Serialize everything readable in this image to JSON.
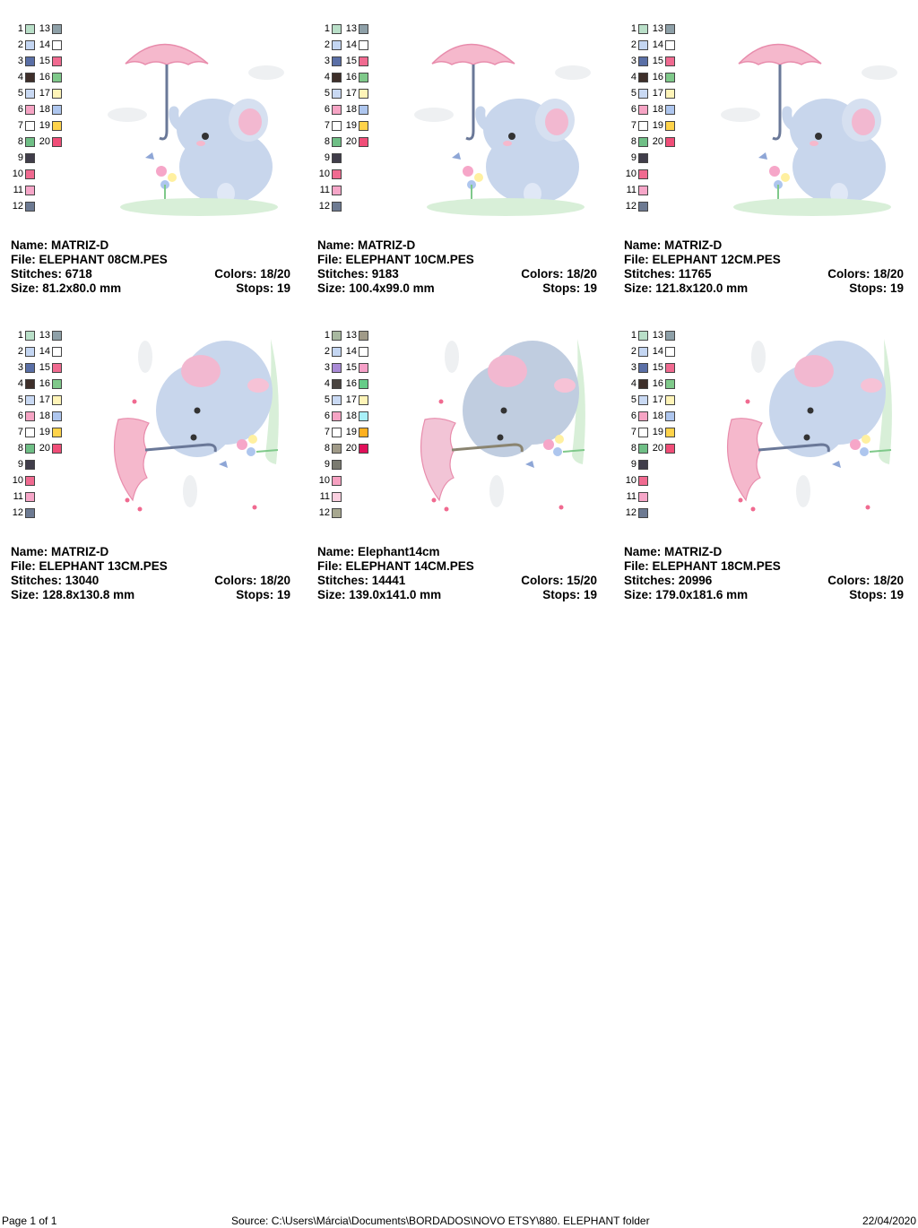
{
  "designs": [
    {
      "name_label": "Name: MATRIZ-D",
      "file_label": "File: ELEPHANT 08CM.PES",
      "stitches_label": "Stitches: 6718",
      "colors_label": "Colors: 18/20",
      "size_label": "Size: 81.2x80.0 mm",
      "stops_label": "Stops: 19",
      "pose": "umbrella-up",
      "swatches": [
        "#b9dfc8",
        "#c4d6f2",
        "#5a6fa6",
        "#3e2f2a",
        "#c9d9f3",
        "#f6a4c4",
        "#ffffff",
        "#6fbf86",
        "#403d4a",
        "#f06a90",
        "#f6a6c8",
        "#6d7a92",
        "#8ea0a8",
        "#ffffff",
        "#f06a90",
        "#7fc98a",
        "#fff4b8",
        "#aec6ee",
        "#ffd34a",
        "#f04e78"
      ]
    },
    {
      "name_label": "Name: MATRIZ-D",
      "file_label": "File: ELEPHANT 10CM.PES",
      "stitches_label": "Stitches: 9183",
      "colors_label": "Colors: 18/20",
      "size_label": "Size: 100.4x99.0 mm",
      "stops_label": "Stops: 19",
      "pose": "umbrella-up",
      "swatches": [
        "#b9dfc8",
        "#c4d6f2",
        "#5a6fa6",
        "#3e2f2a",
        "#c9d9f3",
        "#f6a4c4",
        "#ffffff",
        "#6fbf86",
        "#403d4a",
        "#f06a90",
        "#f6a6c8",
        "#6d7a92",
        "#8ea0a8",
        "#ffffff",
        "#f06a90",
        "#7fc98a",
        "#fff4b8",
        "#aec6ee",
        "#ffd34a",
        "#f04e78"
      ]
    },
    {
      "name_label": "Name: MATRIZ-D",
      "file_label": "File: ELEPHANT 12CM.PES",
      "stitches_label": "Stitches: 11765",
      "colors_label": "Colors: 18/20",
      "size_label": "Size: 121.8x120.0 mm",
      "stops_label": "Stops: 19",
      "pose": "umbrella-up",
      "swatches": [
        "#b9dfc8",
        "#c4d6f2",
        "#5a6fa6",
        "#3e2f2a",
        "#c9d9f3",
        "#f6a4c4",
        "#ffffff",
        "#6fbf86",
        "#403d4a",
        "#f06a90",
        "#f6a6c8",
        "#6d7a92",
        "#8ea0a8",
        "#ffffff",
        "#f06a90",
        "#7fc98a",
        "#fff4b8",
        "#aec6ee",
        "#ffd34a",
        "#f04e78"
      ]
    },
    {
      "name_label": "Name: MATRIZ-D",
      "file_label": "File: ELEPHANT 13CM.PES",
      "stitches_label": "Stitches: 13040",
      "colors_label": "Colors: 18/20",
      "size_label": "Size: 128.8x130.8 mm",
      "stops_label": "Stops: 19",
      "pose": "lying",
      "swatches": [
        "#b9dfc8",
        "#c4d6f2",
        "#5a6fa6",
        "#3e2f2a",
        "#c9d9f3",
        "#f6a4c4",
        "#ffffff",
        "#6fbf86",
        "#403d4a",
        "#f06a90",
        "#f6a6c8",
        "#6d7a92",
        "#8ea0a8",
        "#ffffff",
        "#f06a90",
        "#7fc98a",
        "#fff4b8",
        "#aec6ee",
        "#ffd34a",
        "#f04e78"
      ]
    },
    {
      "name_label": "Name: Elephant14cm",
      "file_label": "File: ELEPHANT 14CM.PES",
      "stitches_label": "Stitches: 14441",
      "colors_label": "Colors: 15/20",
      "size_label": "Size: 139.0x141.0 mm",
      "stops_label": "Stops: 19",
      "pose": "lying",
      "swatches": [
        "#a8b8a0",
        "#c4d6f2",
        "#a98ad6",
        "#4a4440",
        "#c9d9f3",
        "#f6a4c4",
        "#ffffff",
        "#a09a88",
        "#7a7a70",
        "#f6a0c0",
        "#fbd0e0",
        "#a8a890",
        "#a09a88",
        "#ffffff",
        "#f6a0c8",
        "#66cc88",
        "#fff4b8",
        "#a8f0f8",
        "#ffb020",
        "#e0105a"
      ]
    },
    {
      "name_label": "Name: MATRIZ-D",
      "file_label": "File: ELEPHANT 18CM.PES",
      "stitches_label": "Stitches: 20996",
      "colors_label": "Colors: 18/20",
      "size_label": "Size: 179.0x181.6 mm",
      "stops_label": "Stops: 19",
      "pose": "lying",
      "swatches": [
        "#b9dfc8",
        "#c4d6f2",
        "#5a6fa6",
        "#3e2f2a",
        "#c9d9f3",
        "#f6a4c4",
        "#ffffff",
        "#6fbf86",
        "#403d4a",
        "#f06a90",
        "#f6a6c8",
        "#6d7a92",
        "#8ea0a8",
        "#ffffff",
        "#f06a90",
        "#7fc98a",
        "#fff4b8",
        "#aec6ee",
        "#ffd34a",
        "#f04e78"
      ]
    }
  ],
  "swatch_numbers_left": [
    "1",
    "2",
    "3",
    "4",
    "5",
    "6",
    "7",
    "8",
    "9",
    "10",
    "11",
    "12"
  ],
  "swatch_numbers_right": [
    "13",
    "14",
    "15",
    "16",
    "17",
    "18",
    "19",
    "20"
  ],
  "footer": {
    "page": "Page 1 of 1",
    "source": "Source: C:\\Users\\Márcia\\Documents\\BORDADOS\\NOVO ETSY\\880. ELEPHANT folder",
    "date": "22/04/2020"
  }
}
